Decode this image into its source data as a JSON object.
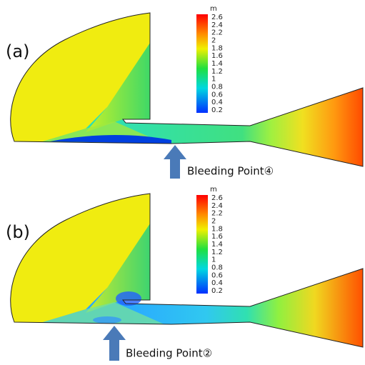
{
  "panels": [
    {
      "label": "(a)",
      "annotation": "Bleeding Point④"
    },
    {
      "label": "(b)",
      "annotation": "Bleeding Point②"
    }
  ],
  "colorbar": {
    "unit": "m",
    "ticks": [
      2.6,
      2.4,
      2.2,
      2,
      1.8,
      1.6,
      1.4,
      1.2,
      1,
      0.8,
      0.6,
      0.4,
      0.2
    ]
  }
}
